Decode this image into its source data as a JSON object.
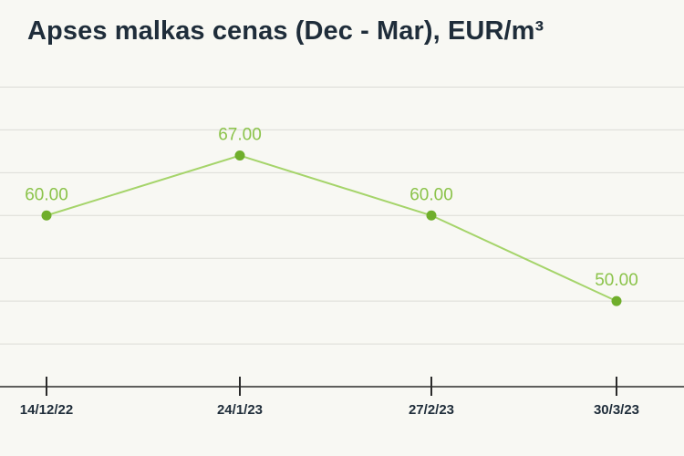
{
  "chart_data": {
    "type": "line",
    "title": "Apses malkas cenas (Dec - Mar), EUR/m³",
    "xlabel": "",
    "ylabel": "",
    "categories": [
      "14/12/22",
      "24/1/23",
      "27/2/23",
      "30/3/23"
    ],
    "series": [
      {
        "values": [
          60.0,
          67.0,
          60.0,
          50.0
        ],
        "data_labels": [
          "60.00",
          "67.00",
          "60.00",
          "50.00"
        ]
      }
    ],
    "ylim": [
      40,
      80
    ],
    "grid": true,
    "legend": "none"
  },
  "colors": {
    "line": "#a5d46a",
    "marker": "#6fae2b",
    "label": "#8bc34a"
  }
}
